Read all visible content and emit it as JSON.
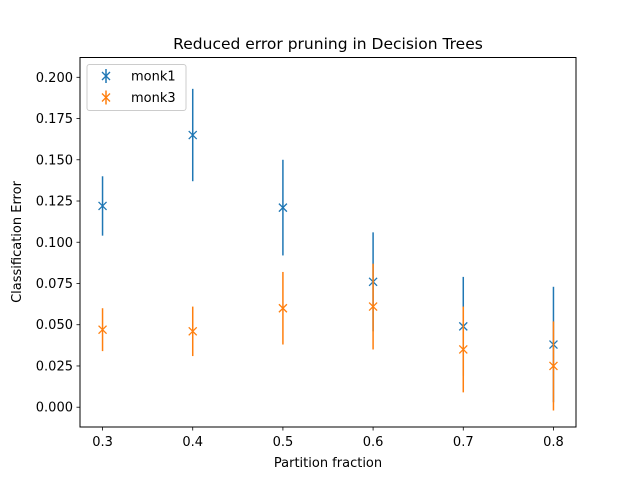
{
  "chart_data": {
    "type": "scatter",
    "title": "Reduced error pruning in Decision Trees",
    "xlabel": "Partition fraction",
    "ylabel": "Classification Error",
    "xlim": [
      0.275,
      0.825
    ],
    "ylim": [
      -0.012,
      0.212
    ],
    "x_ticks": [
      0.3,
      0.4,
      0.5,
      0.6,
      0.7,
      0.8
    ],
    "x_tick_labels": [
      "0.3",
      "0.4",
      "0.5",
      "0.6",
      "0.7",
      "0.8"
    ],
    "y_ticks": [
      0.0,
      0.025,
      0.05,
      0.075,
      0.1,
      0.125,
      0.15,
      0.175,
      0.2
    ],
    "y_tick_labels": [
      "0.000",
      "0.025",
      "0.050",
      "0.075",
      "0.100",
      "0.125",
      "0.150",
      "0.175",
      "0.200"
    ],
    "grid": false,
    "legend_position": "top-left",
    "series": [
      {
        "name": "monk1",
        "color": "#1f77b4",
        "marker": "x",
        "x": [
          0.3,
          0.4,
          0.5,
          0.6,
          0.7,
          0.8
        ],
        "y": [
          0.122,
          0.165,
          0.121,
          0.076,
          0.049,
          0.038
        ],
        "yerr": [
          0.018,
          0.028,
          0.029,
          0.03,
          0.03,
          0.035
        ]
      },
      {
        "name": "monk3",
        "color": "#ff7f0e",
        "marker": "x",
        "x": [
          0.3,
          0.4,
          0.5,
          0.6,
          0.7,
          0.8
        ],
        "y": [
          0.047,
          0.046,
          0.06,
          0.061,
          0.035,
          0.025
        ],
        "yerr": [
          0.013,
          0.015,
          0.022,
          0.026,
          0.026,
          0.027
        ]
      }
    ]
  }
}
